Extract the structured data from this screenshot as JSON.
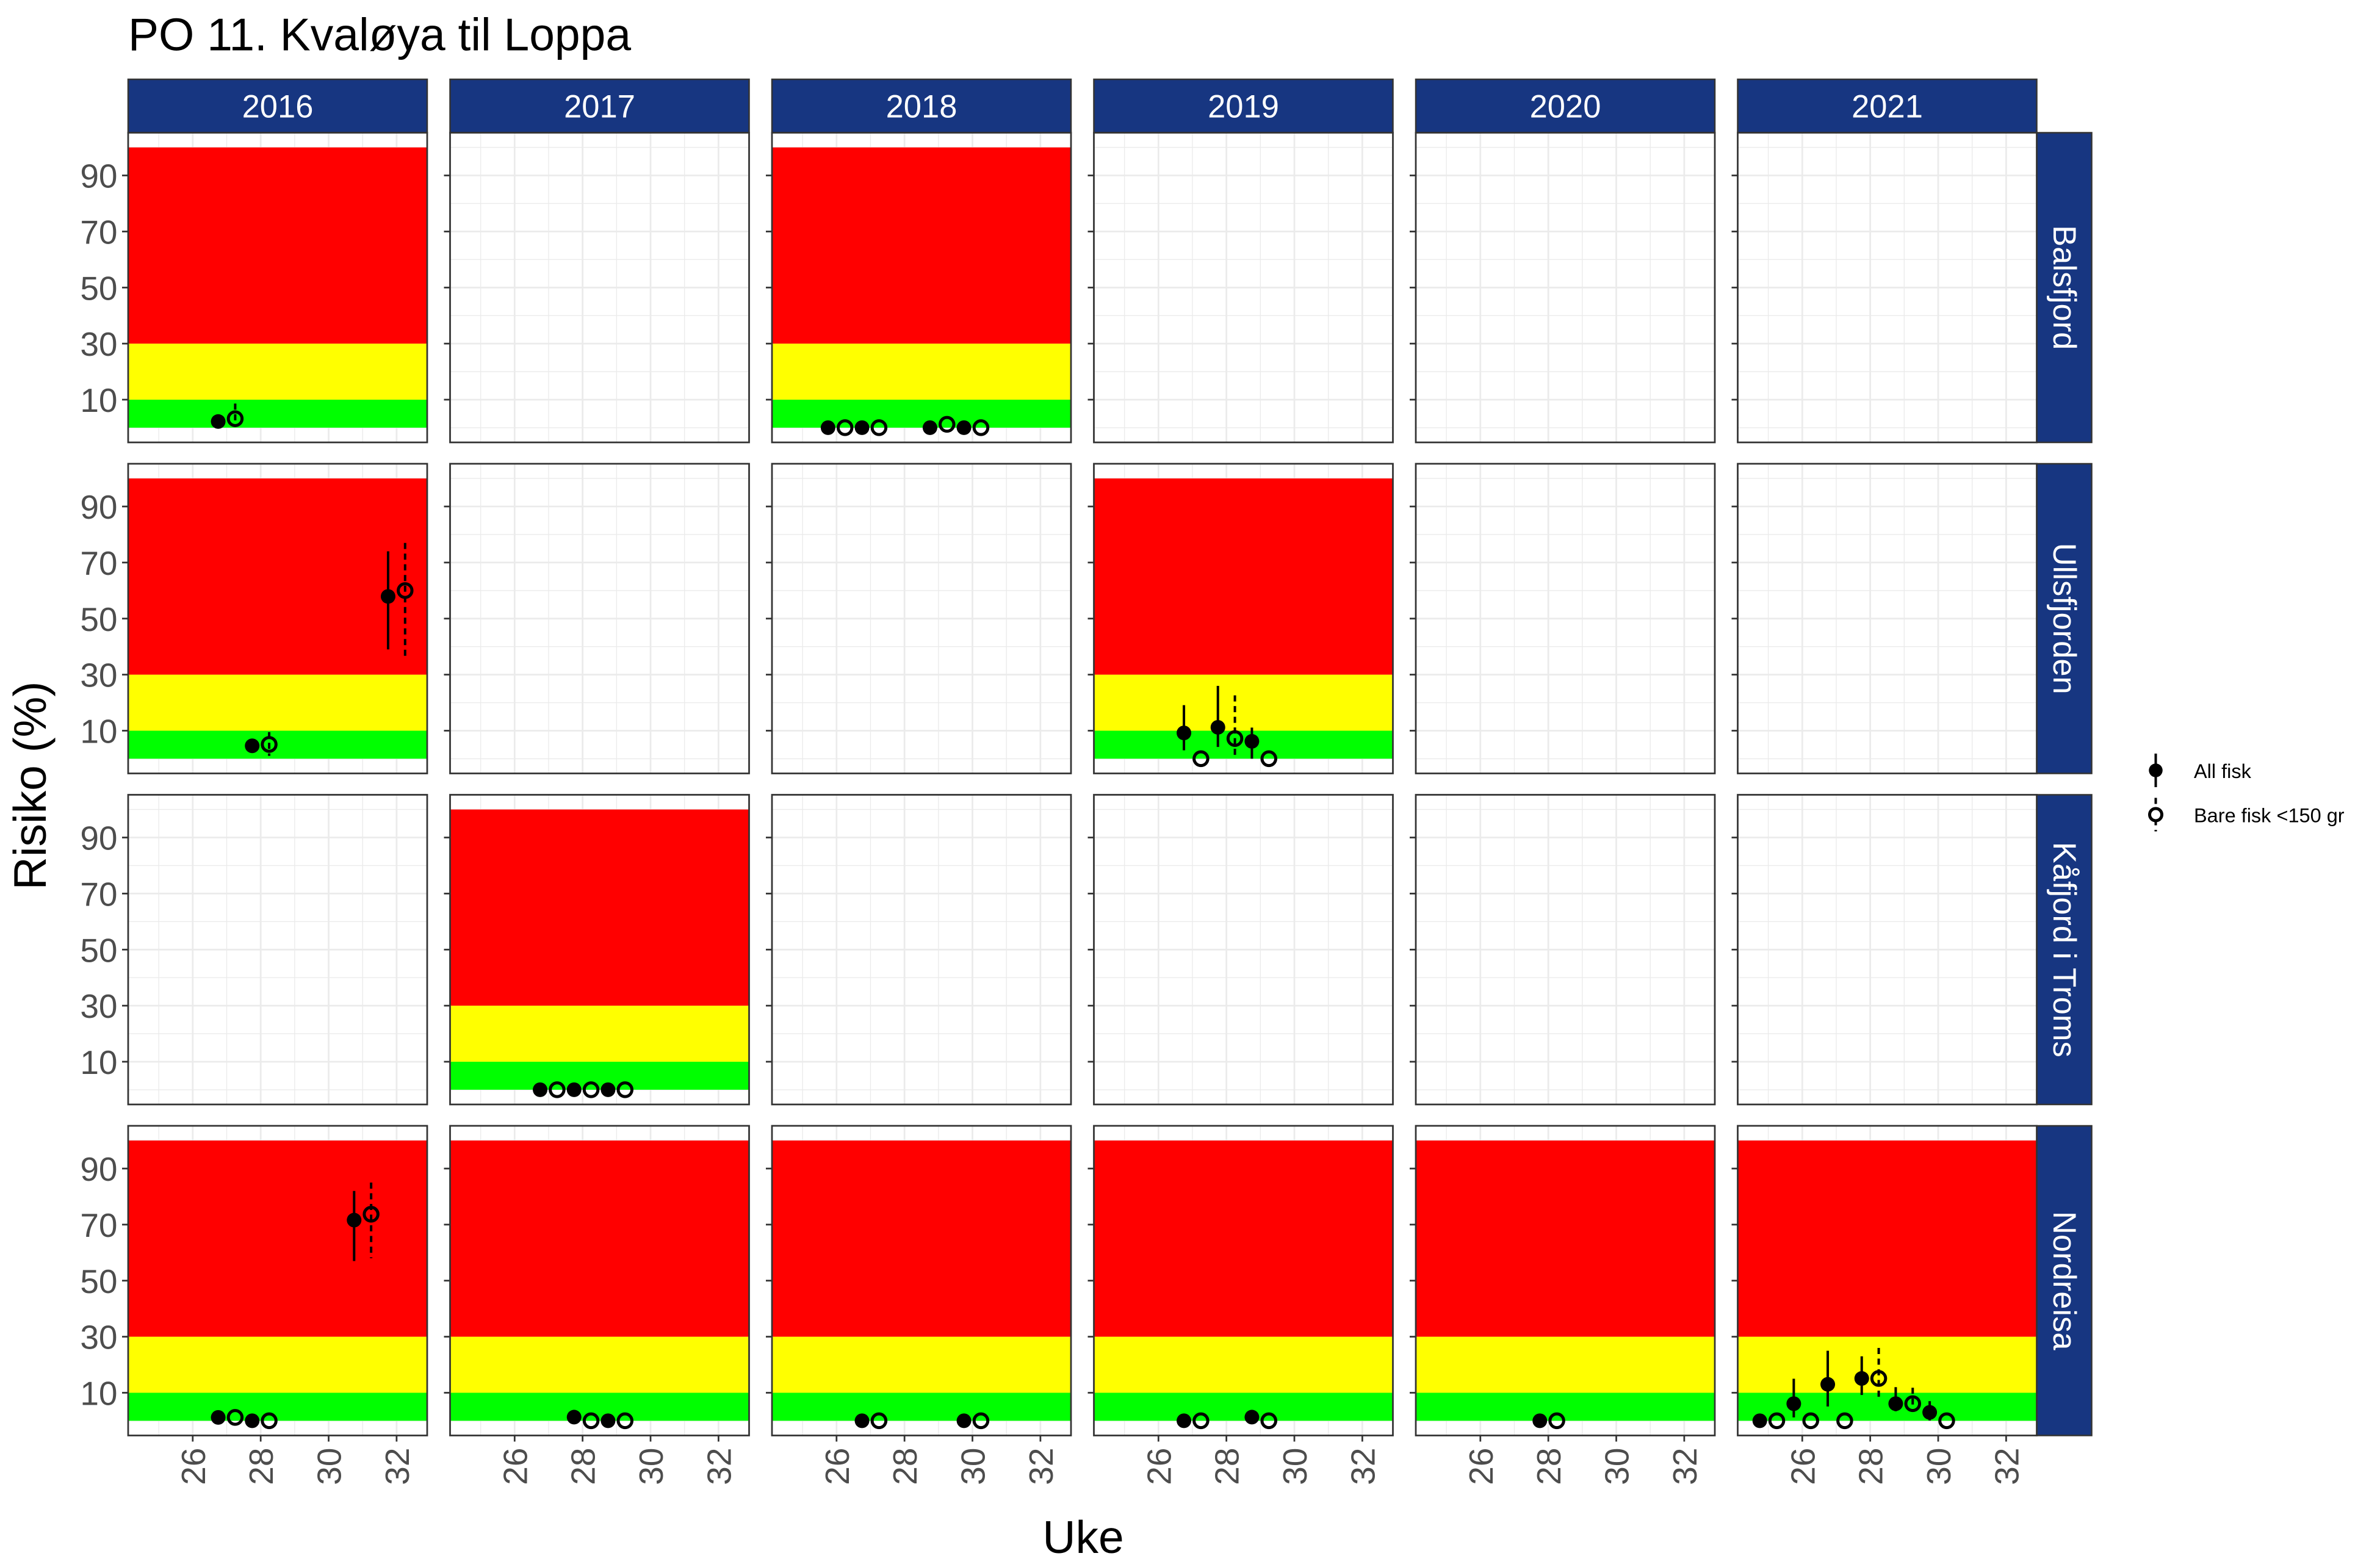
{
  "chart_data": {
    "type": "scatter",
    "title": "PO 11. Kvaløya til Loppa",
    "xlabel": "Uke",
    "ylabel": "Risiko (%)",
    "xlim": [
      24.1,
      32.9
    ],
    "ylim": [
      -5.25,
      105.25
    ],
    "x_ticks": [
      26,
      28,
      30,
      32
    ],
    "y_ticks": [
      10,
      30,
      50,
      70,
      90
    ],
    "grid": true,
    "bands": [
      {
        "from": 0,
        "to": 10,
        "color": "#00FF00"
      },
      {
        "from": 10,
        "to": 30,
        "color": "#FFFF00"
      },
      {
        "from": 30,
        "to": 100,
        "color": "#FF0000"
      }
    ],
    "strip_color": "#173681",
    "years": [
      "2016",
      "2017",
      "2018",
      "2019",
      "2020",
      "2021"
    ],
    "regions": [
      "Balsfjord",
      "Ullsfjorden",
      "Kåfjord i Troms",
      "Nordreisa"
    ],
    "legend": {
      "position": "right",
      "entries": [
        {
          "key": "all",
          "label": "All fisk",
          "marker": "filled-circle",
          "line": "solid"
        },
        {
          "key": "small",
          "label": "Bare fisk <150 gr",
          "marker": "open-circle",
          "line": "dashed"
        }
      ]
    },
    "panels": [
      {
        "region": "Balsfjord",
        "year": "2016",
        "points": [
          {
            "week": 27,
            "all": {
              "value": 2.2
            },
            "small": {
              "value": 3.2,
              "lo": 1,
              "hi": 8.6
            }
          }
        ]
      },
      {
        "region": "Balsfjord",
        "year": "2018",
        "points": [
          {
            "week": 26,
            "all": {
              "value": 0
            },
            "small": {
              "value": 0
            }
          },
          {
            "week": 27,
            "all": {
              "value": 0
            },
            "small": {
              "value": 0
            }
          },
          {
            "week": 29,
            "all": {
              "value": 0
            },
            "small": {
              "value": 1.2
            }
          },
          {
            "week": 30,
            "all": {
              "value": 0
            },
            "small": {
              "value": 0
            }
          }
        ]
      },
      {
        "region": "Ullsfjorden",
        "year": "2016",
        "points": [
          {
            "week": 28,
            "all": {
              "value": 4.6
            },
            "small": {
              "value": 5.1,
              "lo": 1,
              "hi": 9.5
            }
          },
          {
            "week": 32,
            "all": {
              "value": 57.9,
              "lo": 39,
              "hi": 74
            },
            "small": {
              "value": 60,
              "lo": 36,
              "hi": 77
            }
          }
        ]
      },
      {
        "region": "Ullsfjorden",
        "year": "2019",
        "points": [
          {
            "week": 27,
            "all": {
              "value": 9.2,
              "lo": 3,
              "hi": 19.1
            },
            "small": {
              "value": 0
            }
          },
          {
            "week": 28,
            "all": {
              "value": 11.2,
              "lo": 4.2,
              "hi": 26
            },
            "small": {
              "value": 7.2,
              "lo": 0,
              "hi": 22.6
            }
          },
          {
            "week": 29,
            "all": {
              "value": 6.2,
              "lo": 0,
              "hi": 11.1
            },
            "small": {
              "value": 0
            }
          }
        ]
      },
      {
        "region": "Kåfjord i Troms",
        "year": "2017",
        "points": [
          {
            "week": 27,
            "all": {
              "value": 0
            },
            "small": {
              "value": 0
            }
          },
          {
            "week": 28,
            "all": {
              "value": 0
            },
            "small": {
              "value": 0
            }
          },
          {
            "week": 29,
            "all": {
              "value": 0
            },
            "small": {
              "value": 0
            }
          }
        ]
      },
      {
        "region": "Nordreisa",
        "year": "2016",
        "points": [
          {
            "week": 27,
            "all": {
              "value": 1.2
            },
            "small": {
              "value": 1.2
            }
          },
          {
            "week": 28,
            "all": {
              "value": 0
            },
            "small": {
              "value": 0
            }
          },
          {
            "week": 31,
            "all": {
              "value": 71.6,
              "lo": 57,
              "hi": 82
            },
            "small": {
              "value": 73.7,
              "lo": 58,
              "hi": 85
            }
          }
        ]
      },
      {
        "region": "Nordreisa",
        "year": "2017",
        "points": [
          {
            "week": 28,
            "all": {
              "value": 1.3
            },
            "small": {
              "value": 0
            }
          },
          {
            "week": 29,
            "all": {
              "value": 0
            },
            "small": {
              "value": 0
            }
          }
        ]
      },
      {
        "region": "Nordreisa",
        "year": "2018",
        "points": [
          {
            "week": 27,
            "all": {
              "value": 0
            },
            "small": {
              "value": 0
            }
          },
          {
            "week": 30,
            "all": {
              "value": 0
            },
            "small": {
              "value": 0
            }
          }
        ]
      },
      {
        "region": "Nordreisa",
        "year": "2019",
        "points": [
          {
            "week": 27,
            "all": {
              "value": 0
            },
            "small": {
              "value": 0
            }
          },
          {
            "week": 29,
            "all": {
              "value": 1.3
            },
            "small": {
              "value": 0
            }
          }
        ]
      },
      {
        "region": "Nordreisa",
        "year": "2020",
        "points": [
          {
            "week": 28,
            "all": {
              "value": 0
            },
            "small": {
              "value": 0
            }
          }
        ]
      },
      {
        "region": "Nordreisa",
        "year": "2021",
        "points": [
          {
            "week": 25,
            "all": {
              "value": 0
            },
            "small": {
              "value": 0
            }
          },
          {
            "week": 26,
            "all": {
              "value": 6.1,
              "lo": 1.2,
              "hi": 15
            },
            "small": {
              "value": 0
            }
          },
          {
            "week": 27,
            "all": {
              "value": 13,
              "lo": 5.1,
              "hi": 25
            },
            "small": {
              "value": 0
            }
          },
          {
            "week": 28,
            "all": {
              "value": 15.1,
              "lo": 9.2,
              "hi": 23
            },
            "small": {
              "value": 15.1,
              "lo": 7.2,
              "hi": 26
            }
          },
          {
            "week": 29,
            "all": {
              "value": 6.1,
              "lo": 3.4,
              "hi": 12
            },
            "small": {
              "value": 6.1,
              "lo": 3.4,
              "hi": 11.8
            }
          },
          {
            "week": 30,
            "all": {
              "value": 3,
              "lo": 0.1,
              "hi": 7
            },
            "small": {
              "value": 0
            }
          }
        ]
      }
    ]
  }
}
